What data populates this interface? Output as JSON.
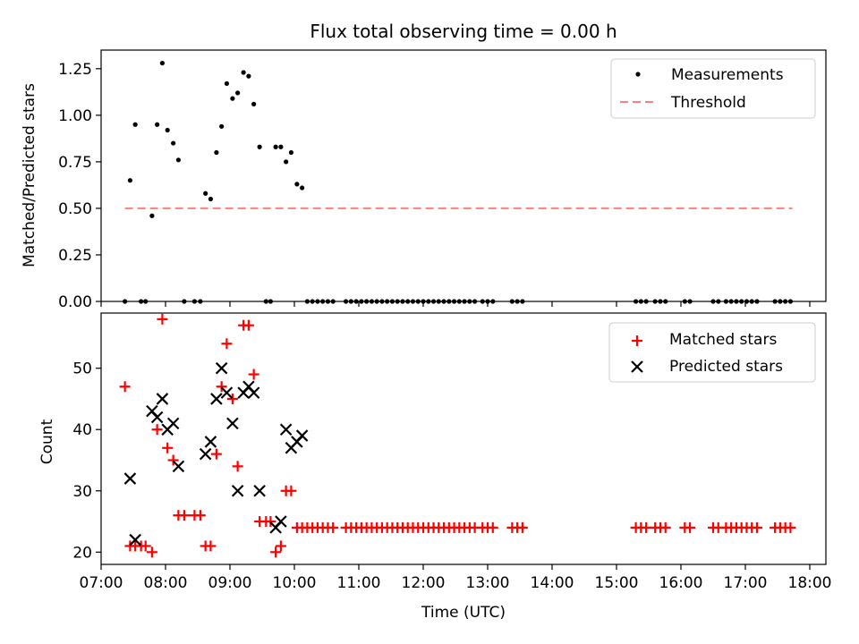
{
  "chart_data": [
    {
      "type": "scatter",
      "panel": "top",
      "title": "Flux total observing time = 0.00 h",
      "xlabel": "",
      "ylabel": "Matched/Predicted stars",
      "xlim": [
        7.0,
        18.25
      ],
      "ylim": [
        0.0,
        1.35
      ],
      "yticks": [
        0.0,
        0.25,
        0.5,
        0.75,
        1.0,
        1.25
      ],
      "ytick_labels": [
        "0.00",
        "0.25",
        "0.50",
        "0.75",
        "1.00",
        "1.25"
      ],
      "legend": [
        "Measurements",
        "Threshold"
      ],
      "legend_position": "top-right",
      "threshold": {
        "value": 0.5,
        "x_start": 7.37,
        "x_end": 17.73,
        "color": "#ff7f7f",
        "style": "dashed"
      },
      "series": [
        {
          "name": "Measurements",
          "marker": "dot",
          "color": "#000000",
          "points": [
            [
              7.37,
              0.0
            ],
            [
              7.45,
              0.65
            ],
            [
              7.53,
              0.95
            ],
            [
              7.62,
              0.0
            ],
            [
              7.69,
              0.0
            ],
            [
              7.79,
              0.46
            ],
            [
              7.87,
              0.95
            ],
            [
              7.95,
              1.28
            ],
            [
              8.03,
              0.92
            ],
            [
              8.12,
              0.85
            ],
            [
              8.2,
              0.76
            ],
            [
              8.29,
              0.0
            ],
            [
              8.45,
              0.0
            ],
            [
              8.54,
              0.0
            ],
            [
              8.62,
              0.58
            ],
            [
              8.7,
              0.55
            ],
            [
              8.79,
              0.8
            ],
            [
              8.87,
              0.94
            ],
            [
              8.95,
              1.17
            ],
            [
              9.04,
              1.09
            ],
            [
              9.12,
              1.12
            ],
            [
              9.21,
              1.23
            ],
            [
              9.29,
              1.21
            ],
            [
              9.37,
              1.06
            ],
            [
              9.46,
              0.83
            ],
            [
              9.56,
              0.0
            ],
            [
              9.63,
              0.0
            ],
            [
              9.71,
              0.83
            ],
            [
              9.79,
              0.83
            ],
            [
              9.87,
              0.75
            ],
            [
              9.95,
              0.8
            ],
            [
              10.04,
              0.63
            ],
            [
              10.12,
              0.61
            ],
            [
              10.2,
              0.0
            ],
            [
              10.28,
              0.0
            ],
            [
              10.36,
              0.0
            ],
            [
              10.44,
              0.0
            ],
            [
              10.52,
              0.0
            ],
            [
              10.6,
              0.0
            ],
            [
              10.8,
              0.0
            ],
            [
              10.88,
              0.0
            ],
            [
              10.96,
              0.0
            ],
            [
              11.04,
              0.0
            ],
            [
              11.12,
              0.0
            ],
            [
              11.2,
              0.0
            ],
            [
              11.28,
              0.0
            ],
            [
              11.36,
              0.0
            ],
            [
              11.44,
              0.0
            ],
            [
              11.52,
              0.0
            ],
            [
              11.6,
              0.0
            ],
            [
              11.68,
              0.0
            ],
            [
              11.76,
              0.0
            ],
            [
              11.84,
              0.0
            ],
            [
              11.92,
              0.0
            ],
            [
              12.0,
              0.0
            ],
            [
              12.08,
              0.0
            ],
            [
              12.16,
              0.0
            ],
            [
              12.24,
              0.0
            ],
            [
              12.32,
              0.0
            ],
            [
              12.4,
              0.0
            ],
            [
              12.48,
              0.0
            ],
            [
              12.56,
              0.0
            ],
            [
              12.64,
              0.0
            ],
            [
              12.72,
              0.0
            ],
            [
              12.8,
              0.0
            ],
            [
              12.92,
              0.0
            ],
            [
              13.0,
              0.0
            ],
            [
              13.08,
              0.0
            ],
            [
              13.38,
              0.0
            ],
            [
              13.46,
              0.0
            ],
            [
              13.54,
              0.0
            ],
            [
              15.3,
              0.0
            ],
            [
              15.38,
              0.0
            ],
            [
              15.46,
              0.0
            ],
            [
              15.6,
              0.0
            ],
            [
              15.68,
              0.0
            ],
            [
              15.76,
              0.0
            ],
            [
              16.06,
              0.0
            ],
            [
              16.14,
              0.0
            ],
            [
              16.5,
              0.0
            ],
            [
              16.58,
              0.0
            ],
            [
              16.7,
              0.0
            ],
            [
              16.78,
              0.0
            ],
            [
              16.86,
              0.0
            ],
            [
              16.94,
              0.0
            ],
            [
              17.02,
              0.0
            ],
            [
              17.1,
              0.0
            ],
            [
              17.18,
              0.0
            ],
            [
              17.46,
              0.0
            ],
            [
              17.54,
              0.0
            ],
            [
              17.62,
              0.0
            ],
            [
              17.7,
              0.0
            ]
          ]
        }
      ]
    },
    {
      "type": "scatter",
      "panel": "bottom",
      "title": "",
      "xlabel": "Time (UTC)",
      "ylabel": "Count",
      "xlim": [
        7.0,
        18.25
      ],
      "ylim": [
        18.0,
        59.0
      ],
      "yticks": [
        20,
        30,
        40,
        50
      ],
      "ytick_labels": [
        "20",
        "30",
        "40",
        "50"
      ],
      "xticks": [
        7,
        8,
        9,
        10,
        11,
        12,
        13,
        14,
        15,
        16,
        17,
        18
      ],
      "xtick_labels": [
        "07:00",
        "08:00",
        "09:00",
        "10:00",
        "11:00",
        "12:00",
        "13:00",
        "14:00",
        "15:00",
        "16:00",
        "17:00",
        "18:00"
      ],
      "legend": [
        "Matched stars",
        "Predicted stars"
      ],
      "legend_position": "top-right",
      "series": [
        {
          "name": "Matched stars",
          "marker": "plus",
          "color": "#ff0000",
          "points": [
            [
              7.37,
              47
            ],
            [
              7.45,
              21
            ],
            [
              7.53,
              21
            ],
            [
              7.62,
              21
            ],
            [
              7.69,
              21
            ],
            [
              7.79,
              20
            ],
            [
              7.87,
              40
            ],
            [
              7.95,
              58
            ],
            [
              8.03,
              37
            ],
            [
              8.12,
              35
            ],
            [
              8.2,
              26
            ],
            [
              8.29,
              26
            ],
            [
              8.45,
              26
            ],
            [
              8.54,
              26
            ],
            [
              8.62,
              21
            ],
            [
              8.7,
              21
            ],
            [
              8.79,
              36
            ],
            [
              8.87,
              47
            ],
            [
              8.95,
              54
            ],
            [
              9.04,
              45
            ],
            [
              9.12,
              34
            ],
            [
              9.21,
              57
            ],
            [
              9.29,
              57
            ],
            [
              9.37,
              49
            ],
            [
              9.46,
              25
            ],
            [
              9.56,
              25
            ],
            [
              9.63,
              25
            ],
            [
              9.71,
              20
            ],
            [
              9.79,
              21
            ],
            [
              9.87,
              30
            ],
            [
              9.95,
              30
            ],
            [
              10.04,
              24
            ],
            [
              10.12,
              24
            ],
            [
              10.2,
              24
            ],
            [
              10.28,
              24
            ],
            [
              10.36,
              24
            ],
            [
              10.44,
              24
            ],
            [
              10.52,
              24
            ],
            [
              10.6,
              24
            ],
            [
              10.8,
              24
            ],
            [
              10.88,
              24
            ],
            [
              10.96,
              24
            ],
            [
              11.04,
              24
            ],
            [
              11.12,
              24
            ],
            [
              11.2,
              24
            ],
            [
              11.28,
              24
            ],
            [
              11.36,
              24
            ],
            [
              11.44,
              24
            ],
            [
              11.52,
              24
            ],
            [
              11.6,
              24
            ],
            [
              11.68,
              24
            ],
            [
              11.76,
              24
            ],
            [
              11.84,
              24
            ],
            [
              11.92,
              24
            ],
            [
              12.0,
              24
            ],
            [
              12.08,
              24
            ],
            [
              12.16,
              24
            ],
            [
              12.24,
              24
            ],
            [
              12.32,
              24
            ],
            [
              12.4,
              24
            ],
            [
              12.48,
              24
            ],
            [
              12.56,
              24
            ],
            [
              12.64,
              24
            ],
            [
              12.72,
              24
            ],
            [
              12.8,
              24
            ],
            [
              12.92,
              24
            ],
            [
              13.0,
              24
            ],
            [
              13.08,
              24
            ],
            [
              13.38,
              24
            ],
            [
              13.46,
              24
            ],
            [
              13.54,
              24
            ],
            [
              15.3,
              24
            ],
            [
              15.38,
              24
            ],
            [
              15.46,
              24
            ],
            [
              15.6,
              24
            ],
            [
              15.68,
              24
            ],
            [
              15.76,
              24
            ],
            [
              16.06,
              24
            ],
            [
              16.14,
              24
            ],
            [
              16.5,
              24
            ],
            [
              16.58,
              24
            ],
            [
              16.7,
              24
            ],
            [
              16.78,
              24
            ],
            [
              16.86,
              24
            ],
            [
              16.94,
              24
            ],
            [
              17.02,
              24
            ],
            [
              17.1,
              24
            ],
            [
              17.18,
              24
            ],
            [
              17.46,
              24
            ],
            [
              17.54,
              24
            ],
            [
              17.62,
              24
            ],
            [
              17.7,
              24
            ]
          ]
        },
        {
          "name": "Predicted stars",
          "marker": "x",
          "color": "#000000",
          "points": [
            [
              7.45,
              32
            ],
            [
              7.53,
              22
            ],
            [
              7.79,
              43
            ],
            [
              7.87,
              42
            ],
            [
              7.95,
              45
            ],
            [
              8.03,
              40
            ],
            [
              8.12,
              41
            ],
            [
              8.2,
              34
            ],
            [
              8.62,
              36
            ],
            [
              8.7,
              38
            ],
            [
              8.79,
              45
            ],
            [
              8.87,
              50
            ],
            [
              8.95,
              46
            ],
            [
              9.04,
              41
            ],
            [
              9.12,
              30
            ],
            [
              9.21,
              46
            ],
            [
              9.29,
              47
            ],
            [
              9.37,
              46
            ],
            [
              9.46,
              30
            ],
            [
              9.71,
              24
            ],
            [
              9.79,
              25
            ],
            [
              9.87,
              40
            ],
            [
              9.95,
              37
            ],
            [
              10.04,
              38
            ],
            [
              10.12,
              39
            ]
          ]
        }
      ]
    }
  ]
}
